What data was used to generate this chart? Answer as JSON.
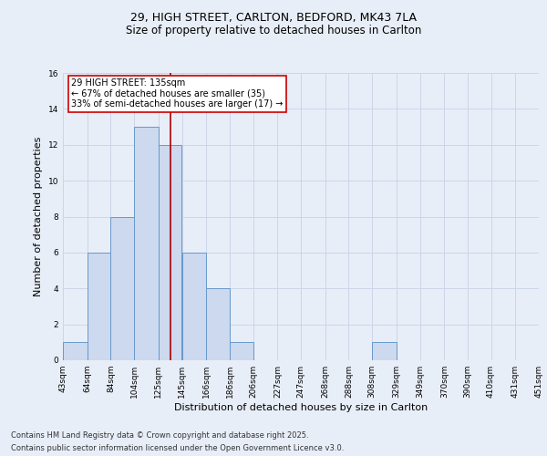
{
  "title_line1": "29, HIGH STREET, CARLTON, BEDFORD, MK43 7LA",
  "title_line2": "Size of property relative to detached houses in Carlton",
  "xlabel": "Distribution of detached houses by size in Carlton",
  "ylabel": "Number of detached properties",
  "bin_edges": [
    43,
    64,
    84,
    104,
    125,
    145,
    166,
    186,
    206,
    227,
    247,
    268,
    288,
    308,
    329,
    349,
    370,
    390,
    410,
    431,
    451
  ],
  "bar_heights": [
    1,
    6,
    8,
    13,
    12,
    6,
    4,
    1,
    0,
    0,
    0,
    0,
    0,
    1,
    0,
    0,
    0,
    0,
    0,
    0
  ],
  "bar_color": "#ccd9ee",
  "bar_edge_color": "#6699cc",
  "marker_value": 135,
  "marker_line_color": "#aa0000",
  "annotation_text": "29 HIGH STREET: 135sqm\n← 67% of detached houses are smaller (35)\n33% of semi-detached houses are larger (17) →",
  "annotation_box_edge": "#cc0000",
  "annotation_box_face": "#ffffff",
  "ylim": [
    0,
    16
  ],
  "yticks": [
    0,
    2,
    4,
    6,
    8,
    10,
    12,
    14,
    16
  ],
  "grid_color": "#ccd6e8",
  "background_color": "#e8eef8",
  "footer_line1": "Contains HM Land Registry data © Crown copyright and database right 2025.",
  "footer_line2": "Contains public sector information licensed under the Open Government Licence v3.0.",
  "title_fontsize": 9,
  "subtitle_fontsize": 8.5,
  "axis_label_fontsize": 8,
  "tick_fontsize": 6.5,
  "annotation_fontsize": 7,
  "footer_fontsize": 6
}
